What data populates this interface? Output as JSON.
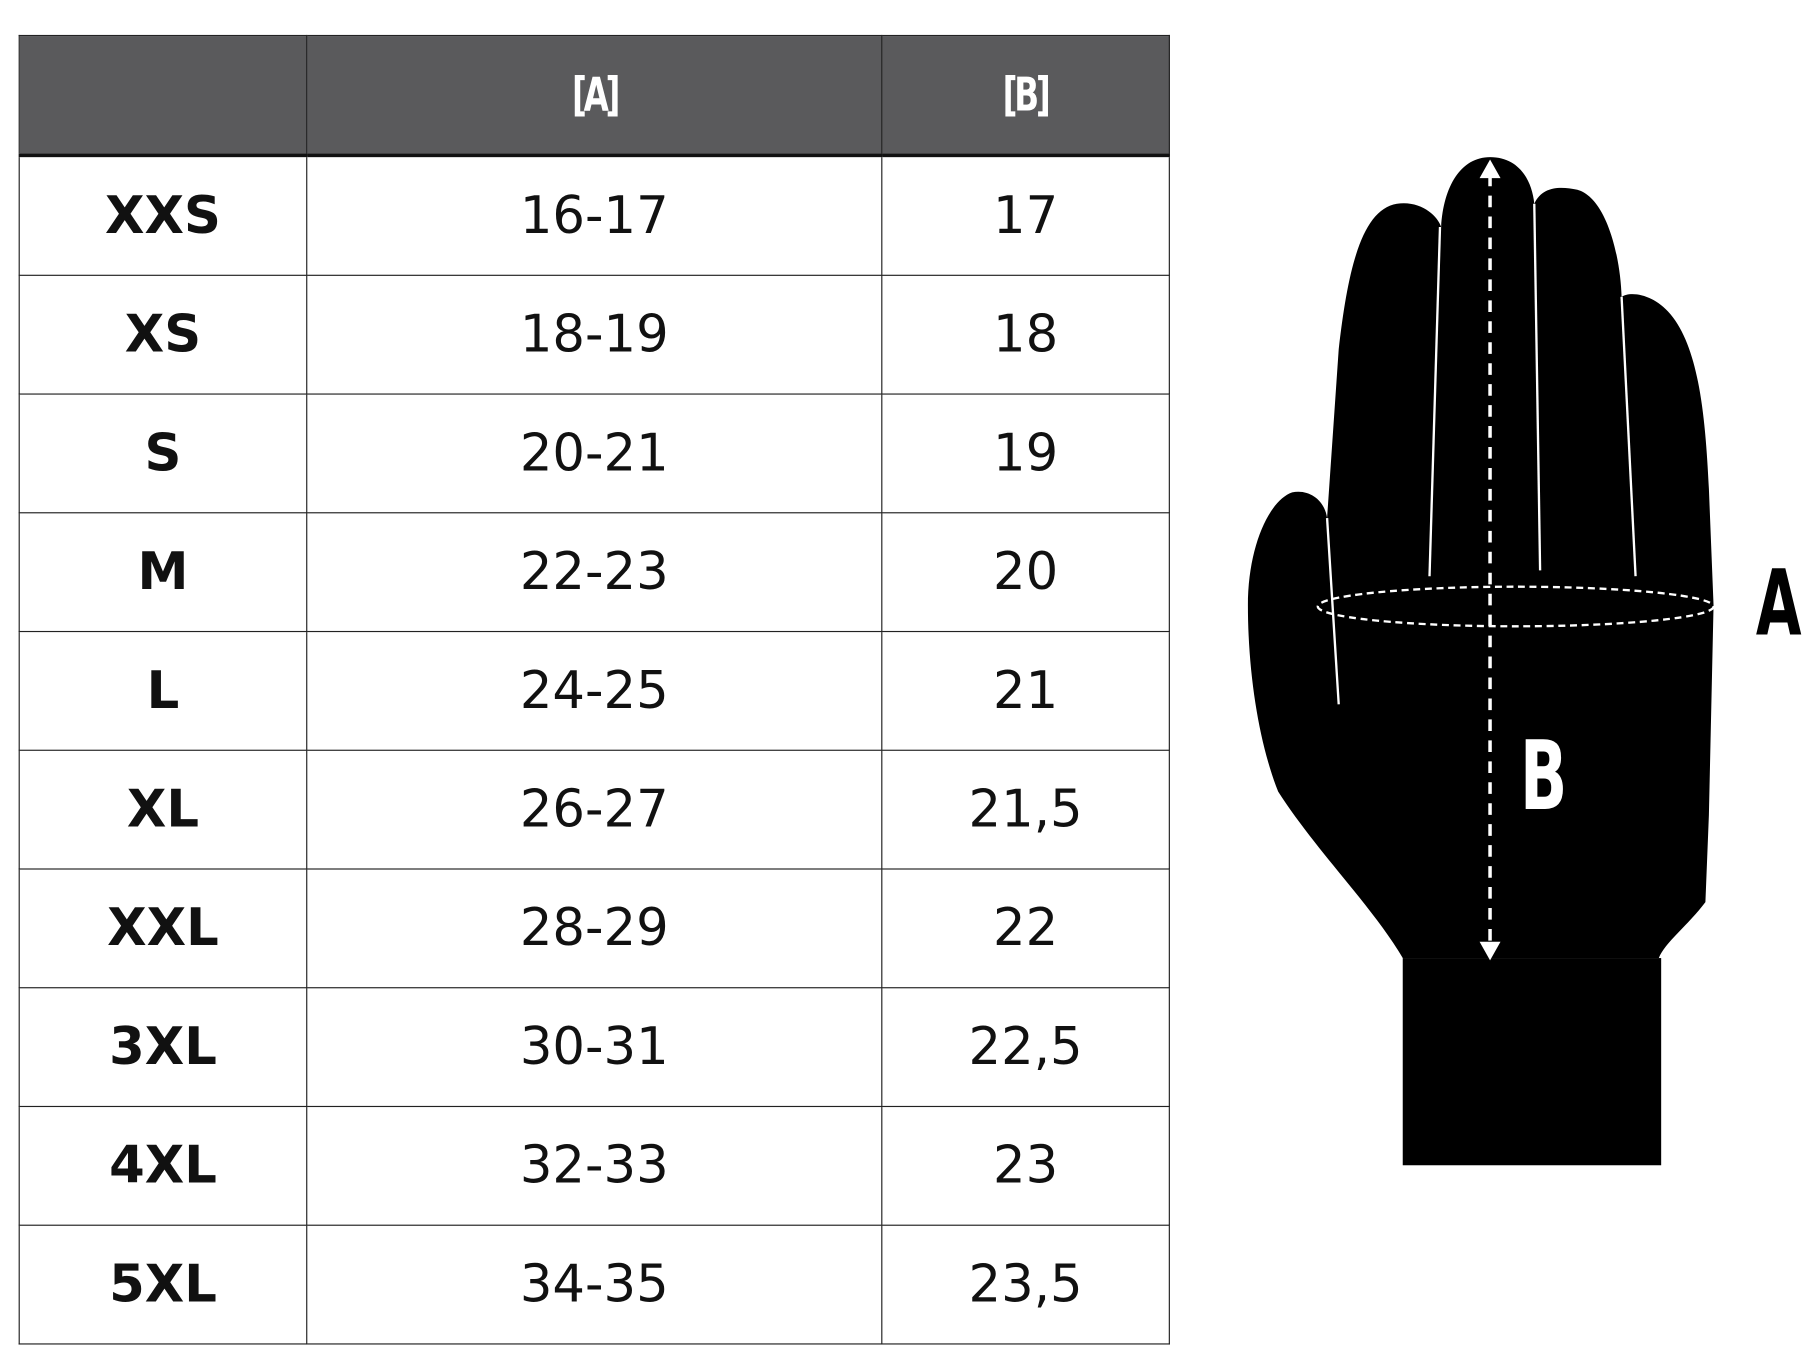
{
  "table": {
    "headers": [
      "",
      "[A]",
      "[B]"
    ],
    "rows": [
      {
        "size": "XXS",
        "a": "16-17",
        "b": "17"
      },
      {
        "size": "XS",
        "a": "18-19",
        "b": "18"
      },
      {
        "size": "S",
        "a": "20-21",
        "b": "19"
      },
      {
        "size": "M",
        "a": "22-23",
        "b": "20"
      },
      {
        "size": "L",
        "a": "24-25",
        "b": "21"
      },
      {
        "size": "XL",
        "a": "26-27",
        "b": "21,5"
      },
      {
        "size": "XXL",
        "a": "28-29",
        "b": "22"
      },
      {
        "size": "3XL",
        "a": "30-31",
        "b": "22,5"
      },
      {
        "size": "4XL",
        "a": "32-33",
        "b": "23"
      },
      {
        "size": "5XL",
        "a": "34-35",
        "b": "23,5"
      }
    ]
  },
  "diagram": {
    "label_a": "A",
    "label_b": "B",
    "colors": {
      "header_bg": "#5a5a5c",
      "glove": "#000000",
      "markings": "#ffffff"
    }
  }
}
